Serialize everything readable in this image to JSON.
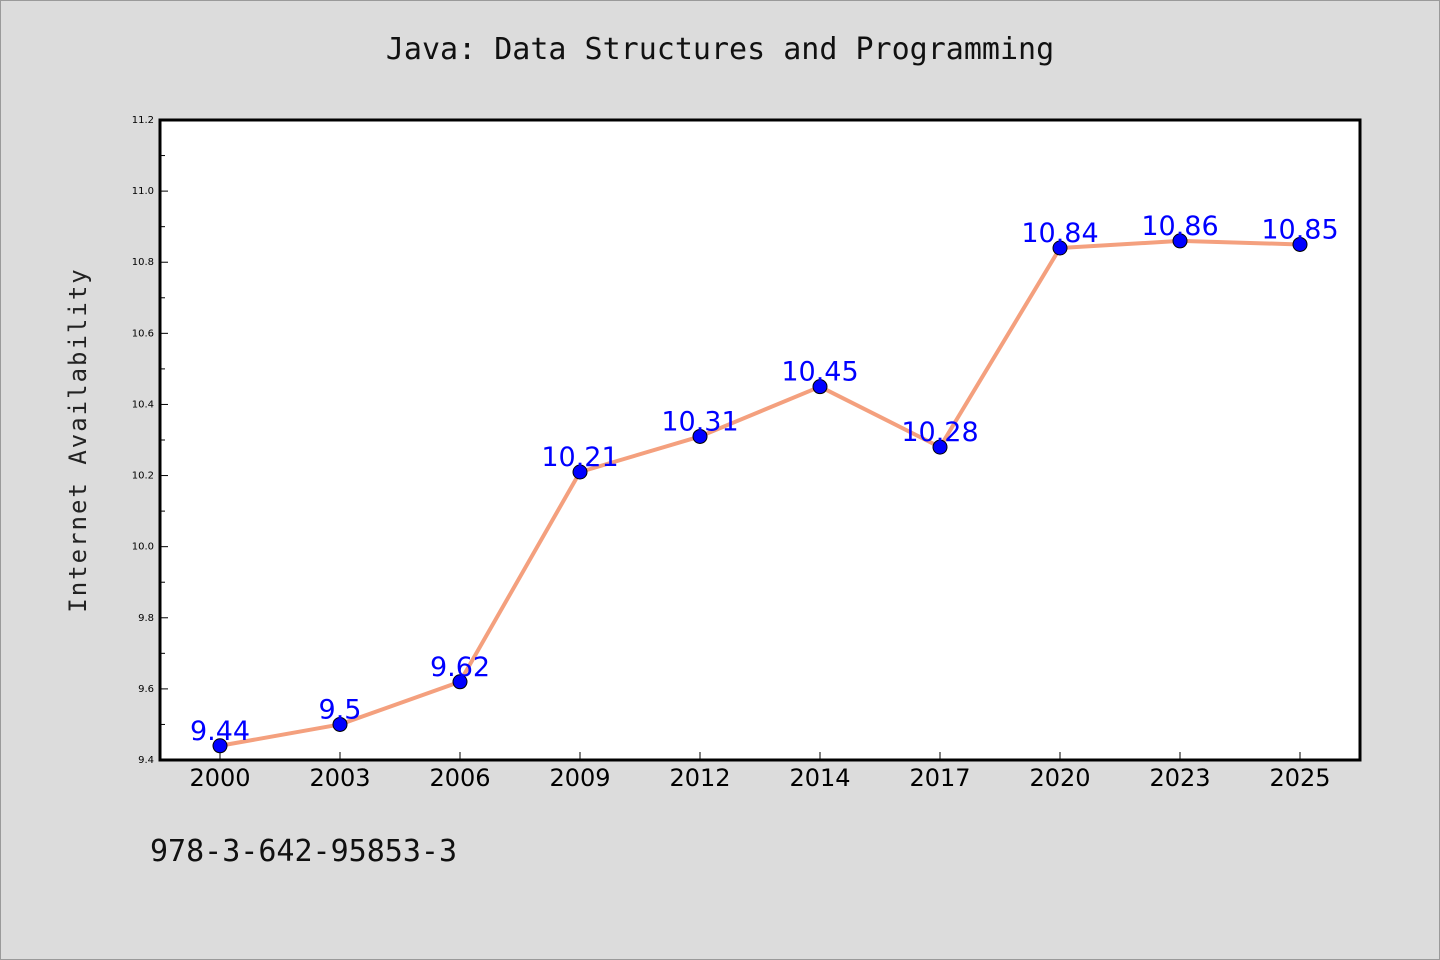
{
  "chart_data": {
    "type": "line",
    "title": "Java: Data Structures and Programming",
    "xlabel": "",
    "ylabel": "Internet Availability",
    "categories": [
      "2000",
      "2003",
      "2006",
      "2009",
      "2012",
      "2014",
      "2017",
      "2020",
      "2023",
      "2025"
    ],
    "series": [
      {
        "values": [
          9.44,
          9.5,
          9.62,
          10.21,
          10.31,
          10.45,
          10.28,
          10.84,
          10.86,
          10.85
        ],
        "data_labels": [
          "9.44",
          "9.5",
          "9.62",
          "10.21",
          "10.31",
          "10.45",
          "10.28",
          "10.84",
          "10.86",
          "10.85"
        ],
        "line_color": "#f4a07e",
        "marker_color": "#0000ff",
        "label_color": "#0000ff"
      }
    ],
    "ylim": [
      9.4,
      11.2
    ],
    "yticks": [
      "9.4",
      "9.6",
      "9.8",
      "10.0",
      "10.2",
      "10.4",
      "10.6",
      "10.8",
      "11.0",
      "11.2"
    ],
    "grid": false,
    "legend": "none"
  },
  "footer": {
    "isbn": "978-3-642-95853-3"
  },
  "colors": {
    "background": "#dcdcdc",
    "plot_background": "#ffffff"
  }
}
